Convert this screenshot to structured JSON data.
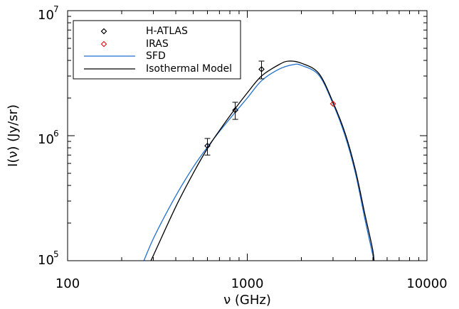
{
  "chart_data": {
    "type": "line",
    "xscale": "log",
    "yscale": "log",
    "xlim": [
      100,
      10000
    ],
    "ylim": [
      100000,
      10000000
    ],
    "xlabel": "ν (GHz)",
    "ylabel": "I(ν) (Jy/sr)",
    "x_ticks": [
      "100",
      "1000",
      "10000"
    ],
    "y_ticks": [
      {
        "base": "10",
        "exp": "7",
        "value": 10000000
      },
      {
        "base": "10",
        "exp": "6",
        "value": 1000000
      },
      {
        "base": "10",
        "exp": "5",
        "value": 100000
      }
    ],
    "legend": {
      "placement": "top-left",
      "entries": [
        {
          "label": "H-ATLAS",
          "kind": "marker",
          "color": "#000000"
        },
        {
          "label": "IRAS",
          "kind": "marker",
          "color": "#e8191c"
        },
        {
          "label": "SFD",
          "kind": "line",
          "color": "#1f6fd1"
        },
        {
          "label": "Isothermal Model",
          "kind": "line",
          "color": "#000000"
        }
      ]
    },
    "series": [
      {
        "name": "H-ATLAS",
        "kind": "points",
        "color": "#000000",
        "points": [
          {
            "x": 600,
            "y": 830000,
            "ylo": 700000,
            "yhi": 950000
          },
          {
            "x": 857,
            "y": 1600000,
            "ylo": 1350000,
            "yhi": 1850000
          },
          {
            "x": 1200,
            "y": 3400000,
            "ylo": 2850000,
            "yhi": 3950000
          }
        ]
      },
      {
        "name": "IRAS",
        "kind": "points",
        "color": "#e8191c",
        "points": [
          {
            "x": 3000,
            "y": 1800000
          }
        ]
      },
      {
        "name": "SFD",
        "kind": "curve",
        "color": "#1f6fd1",
        "points": [
          [
            250,
            80000
          ],
          [
            300,
            150000
          ],
          [
            400,
            330000
          ],
          [
            500,
            560000
          ],
          [
            600,
            810000
          ],
          [
            700,
            1080000
          ],
          [
            857,
            1540000
          ],
          [
            1000,
            2000000
          ],
          [
            1200,
            2750000
          ],
          [
            1500,
            3400000
          ],
          [
            1800,
            3700000
          ],
          [
            2000,
            3650000
          ],
          [
            2500,
            3050000
          ],
          [
            3000,
            1800000
          ],
          [
            3500,
            1000000
          ],
          [
            4000,
            500000
          ],
          [
            4500,
            220000
          ],
          [
            5000,
            110000
          ],
          [
            5200,
            80000
          ]
        ]
      },
      {
        "name": "Isothermal Model",
        "kind": "curve",
        "color": "#000000",
        "points": [
          [
            270,
            80000
          ],
          [
            300,
            110000
          ],
          [
            400,
            270000
          ],
          [
            500,
            500000
          ],
          [
            600,
            790000
          ],
          [
            700,
            1100000
          ],
          [
            857,
            1650000
          ],
          [
            1000,
            2200000
          ],
          [
            1200,
            3000000
          ],
          [
            1500,
            3700000
          ],
          [
            1700,
            3950000
          ],
          [
            2000,
            3800000
          ],
          [
            2500,
            3150000
          ],
          [
            3000,
            1850000
          ],
          [
            3500,
            1050000
          ],
          [
            4000,
            530000
          ],
          [
            4500,
            240000
          ],
          [
            5000,
            120000
          ],
          [
            5100,
            85000
          ]
        ]
      }
    ]
  }
}
